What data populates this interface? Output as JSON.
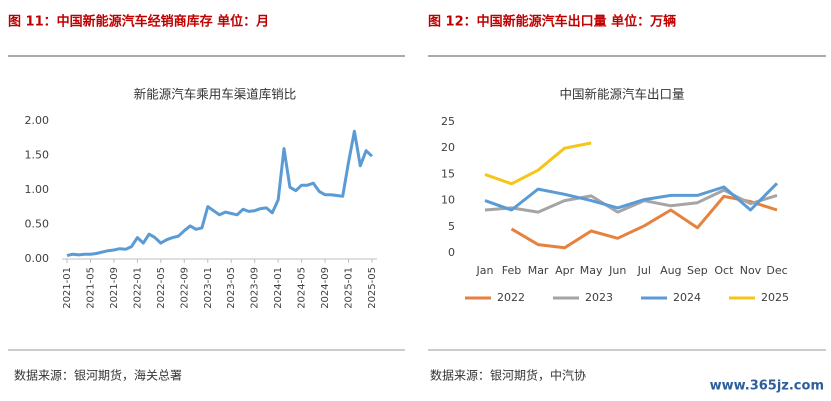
{
  "panels": [
    {
      "heading": "图 11：中国新能源汽车经销商库存    单位：月",
      "source": "数据来源：银河期货，海关总署"
    },
    {
      "heading": "图 12：中国新能源汽车出口量    单位：万辆",
      "source": "数据来源：银河期货，中汽协"
    }
  ],
  "watermark": "www.365jz.com",
  "chart_data": [
    {
      "type": "line",
      "title": "新能源汽车乘用车渠道库销比",
      "categories": [
        "2021-01",
        null,
        null,
        null,
        "2021-05",
        null,
        null,
        null,
        "2021-09",
        null,
        null,
        null,
        "2022-01",
        null,
        null,
        null,
        "2022-05",
        null,
        null,
        null,
        "2022-09",
        null,
        null,
        null,
        "2023-01",
        null,
        null,
        null,
        "2023-05",
        null,
        null,
        null,
        "2023-09",
        null,
        null,
        null,
        "2024-01",
        null,
        null,
        null,
        "2024-05",
        null,
        null,
        null,
        "2024-09",
        null,
        null,
        null,
        "2025-01",
        null,
        null,
        null,
        "2025-05"
      ],
      "series": [
        {
          "name": "库销比",
          "color": "#5b9bd5",
          "values": [
            0.05,
            0.07,
            0.06,
            0.07,
            0.07,
            0.08,
            0.1,
            0.12,
            0.13,
            0.15,
            0.14,
            0.18,
            0.31,
            0.23,
            0.36,
            0.31,
            0.23,
            0.28,
            0.31,
            0.33,
            0.41,
            0.48,
            0.43,
            0.45,
            0.76,
            0.7,
            0.64,
            0.68,
            0.66,
            0.64,
            0.72,
            0.69,
            0.7,
            0.73,
            0.74,
            0.67,
            0.86,
            1.6,
            1.04,
            0.99,
            1.07,
            1.07,
            1.1,
            0.98,
            0.93,
            0.93,
            0.92,
            0.91,
            1.4,
            1.85,
            1.35,
            1.57,
            1.49
          ]
        }
      ],
      "ylim": [
        0,
        2
      ],
      "yticks": [
        {
          "value": 0,
          "label": "0.00"
        },
        {
          "value": 0.5,
          "label": "0.50"
        },
        {
          "value": 1,
          "label": "1.00"
        },
        {
          "value": 1.5,
          "label": "1.50"
        },
        {
          "value": 2,
          "label": "2.00"
        }
      ],
      "legend": false
    },
    {
      "type": "line",
      "title": "中国新能源汽车出口量",
      "categories": [
        "Jan",
        "Feb",
        "Mar",
        "Apr",
        "May",
        "Jun",
        "Jul",
        "Aug",
        "Sep",
        "Oct",
        "Nov",
        "Dec"
      ],
      "series": [
        {
          "name": "2022",
          "color": "#e5823f",
          "values": [
            null,
            4.6,
            1.6,
            1.0,
            4.2,
            2.8,
            5.2,
            8.2,
            4.8,
            10.8,
            9.8,
            8.2
          ]
        },
        {
          "name": "2023",
          "color": "#a5a5a5",
          "values": [
            8.2,
            8.6,
            7.8,
            10.0,
            10.9,
            7.8,
            10.0,
            9.0,
            9.6,
            12.0,
            9.4,
            11.0
          ]
        },
        {
          "name": "2024",
          "color": "#5b9bd5",
          "values": [
            10.0,
            8.2,
            12.2,
            11.2,
            10.0,
            8.6,
            10.2,
            11.0,
            11.0,
            12.6,
            8.2,
            13.3
          ]
        },
        {
          "name": "2025",
          "color": "#f5c518",
          "values": [
            15.0,
            13.2,
            15.8,
            20.0,
            21.0,
            null,
            null,
            null,
            null,
            null,
            null,
            null
          ]
        }
      ],
      "ylim": [
        0,
        25
      ],
      "yticks": [
        0,
        5,
        10,
        15,
        20,
        25
      ],
      "legend": "bottom"
    }
  ]
}
